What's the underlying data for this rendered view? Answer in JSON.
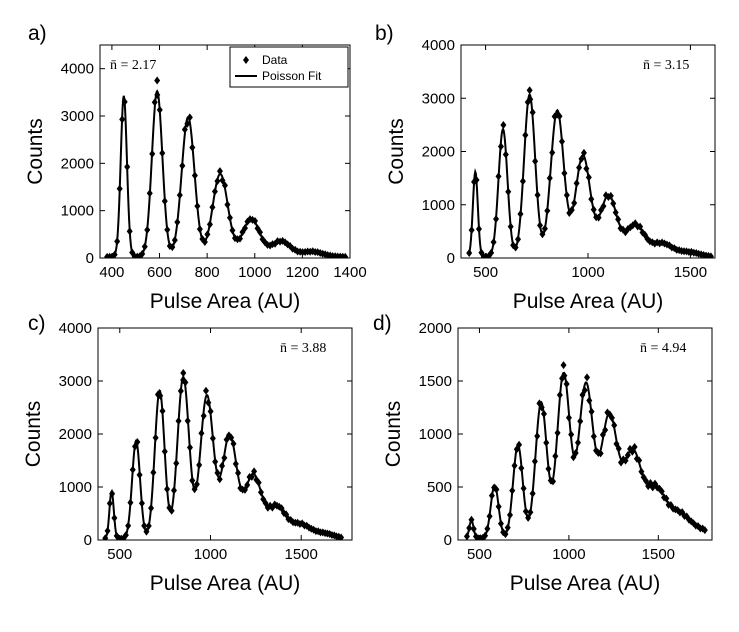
{
  "figure": {
    "line_color": "#000000",
    "marker_color": "#000000",
    "background": "#ffffff"
  },
  "legend": {
    "data_label": "Data",
    "fit_label": "Poisson Fit"
  },
  "chart_data": [
    {
      "type": "line",
      "panel_label": "a)",
      "annotation": "n̄ = 2.17",
      "xlabel": "Pulse Area (AU)",
      "ylabel": "Counts",
      "xlim": [
        350,
        1400
      ],
      "ylim": [
        0,
        4500
      ],
      "xticks": [
        400,
        600,
        800,
        1000,
        1200,
        1400
      ],
      "yticks": [
        0,
        1000,
        2000,
        3000,
        4000
      ],
      "legend": true,
      "peaks": [
        {
          "center": 450,
          "height": 3400,
          "sigma": 13
        },
        {
          "center": 590,
          "height": 3500,
          "sigma": 22
        },
        {
          "center": 720,
          "height": 2950,
          "sigma": 27
        },
        {
          "center": 855,
          "height": 1750,
          "sigma": 32
        },
        {
          "center": 985,
          "height": 800,
          "sigma": 36
        },
        {
          "center": 1110,
          "height": 330,
          "sigma": 40
        },
        {
          "center": 1240,
          "height": 110,
          "sigma": 45
        }
      ],
      "x_range": [
        380,
        1380
      ],
      "n_points": 96,
      "baseline": 25,
      "outliers": [
        [
          590,
          3750
        ]
      ]
    },
    {
      "type": "line",
      "panel_label": "b)",
      "annotation": "n̄ = 3.15",
      "xlabel": "Pulse Area (AU)",
      "ylabel": "Counts",
      "xlim": [
        380,
        1620
      ],
      "ylim": [
        0,
        4000
      ],
      "xticks": [
        500,
        1000,
        1500
      ],
      "yticks": [
        0,
        1000,
        2000,
        3000,
        4000
      ],
      "legend": false,
      "peaks": [
        {
          "center": 450,
          "height": 1600,
          "sigma": 12
        },
        {
          "center": 585,
          "height": 2400,
          "sigma": 22
        },
        {
          "center": 715,
          "height": 3050,
          "sigma": 27
        },
        {
          "center": 850,
          "height": 2750,
          "sigma": 32
        },
        {
          "center": 975,
          "height": 1900,
          "sigma": 36
        },
        {
          "center": 1100,
          "height": 1150,
          "sigma": 40
        },
        {
          "center": 1230,
          "height": 600,
          "sigma": 45
        },
        {
          "center": 1360,
          "height": 250,
          "sigma": 50
        },
        {
          "center": 1490,
          "height": 90,
          "sigma": 55
        }
      ],
      "x_range": [
        420,
        1600
      ],
      "n_points": 100,
      "baseline": 20,
      "outliers": [
        [
          715,
          3150
        ]
      ]
    },
    {
      "type": "line",
      "panel_label": "c)",
      "annotation": "n̄ = 3.88",
      "xlabel": "Pulse Area (AU)",
      "ylabel": "Counts",
      "xlim": [
        380,
        1780
      ],
      "ylim": [
        0,
        4000
      ],
      "xticks": [
        500,
        1000,
        1500
      ],
      "yticks": [
        0,
        1000,
        2000,
        3000,
        4000
      ],
      "legend": false,
      "peaks": [
        {
          "center": 455,
          "height": 900,
          "sigma": 12
        },
        {
          "center": 590,
          "height": 1850,
          "sigma": 22
        },
        {
          "center": 720,
          "height": 2800,
          "sigma": 27
        },
        {
          "center": 850,
          "height": 3050,
          "sigma": 32
        },
        {
          "center": 980,
          "height": 2700,
          "sigma": 36
        },
        {
          "center": 1105,
          "height": 1950,
          "sigma": 40
        },
        {
          "center": 1235,
          "height": 1200,
          "sigma": 45
        },
        {
          "center": 1365,
          "height": 600,
          "sigma": 50
        },
        {
          "center": 1495,
          "height": 260,
          "sigma": 55
        },
        {
          "center": 1625,
          "height": 100,
          "sigma": 60
        }
      ],
      "x_range": [
        420,
        1720
      ],
      "n_points": 104,
      "baseline": 20,
      "outliers": [
        [
          850,
          3150
        ]
      ]
    },
    {
      "type": "line",
      "panel_label": "d)",
      "annotation": "n̄ = 4.94",
      "xlabel": "Pulse Area (AU)",
      "ylabel": "Counts",
      "xlim": [
        380,
        1800
      ],
      "ylim": [
        0,
        2000
      ],
      "xticks": [
        500,
        1000,
        1500
      ],
      "yticks": [
        0,
        500,
        1000,
        1500,
        2000
      ],
      "legend": false,
      "peaks": [
        {
          "center": 455,
          "height": 170,
          "sigma": 12
        },
        {
          "center": 585,
          "height": 500,
          "sigma": 22
        },
        {
          "center": 715,
          "height": 880,
          "sigma": 27
        },
        {
          "center": 845,
          "height": 1280,
          "sigma": 32
        },
        {
          "center": 970,
          "height": 1550,
          "sigma": 36
        },
        {
          "center": 1095,
          "height": 1450,
          "sigma": 40
        },
        {
          "center": 1225,
          "height": 1150,
          "sigma": 45
        },
        {
          "center": 1355,
          "height": 800,
          "sigma": 50
        },
        {
          "center": 1485,
          "height": 450,
          "sigma": 55
        },
        {
          "center": 1615,
          "height": 220,
          "sigma": 60
        },
        {
          "center": 1745,
          "height": 70,
          "sigma": 65
        }
      ],
      "x_range": [
        430,
        1760
      ],
      "n_points": 106,
      "baseline": 15,
      "outliers": [
        [
          970,
          1650
        ]
      ]
    }
  ]
}
